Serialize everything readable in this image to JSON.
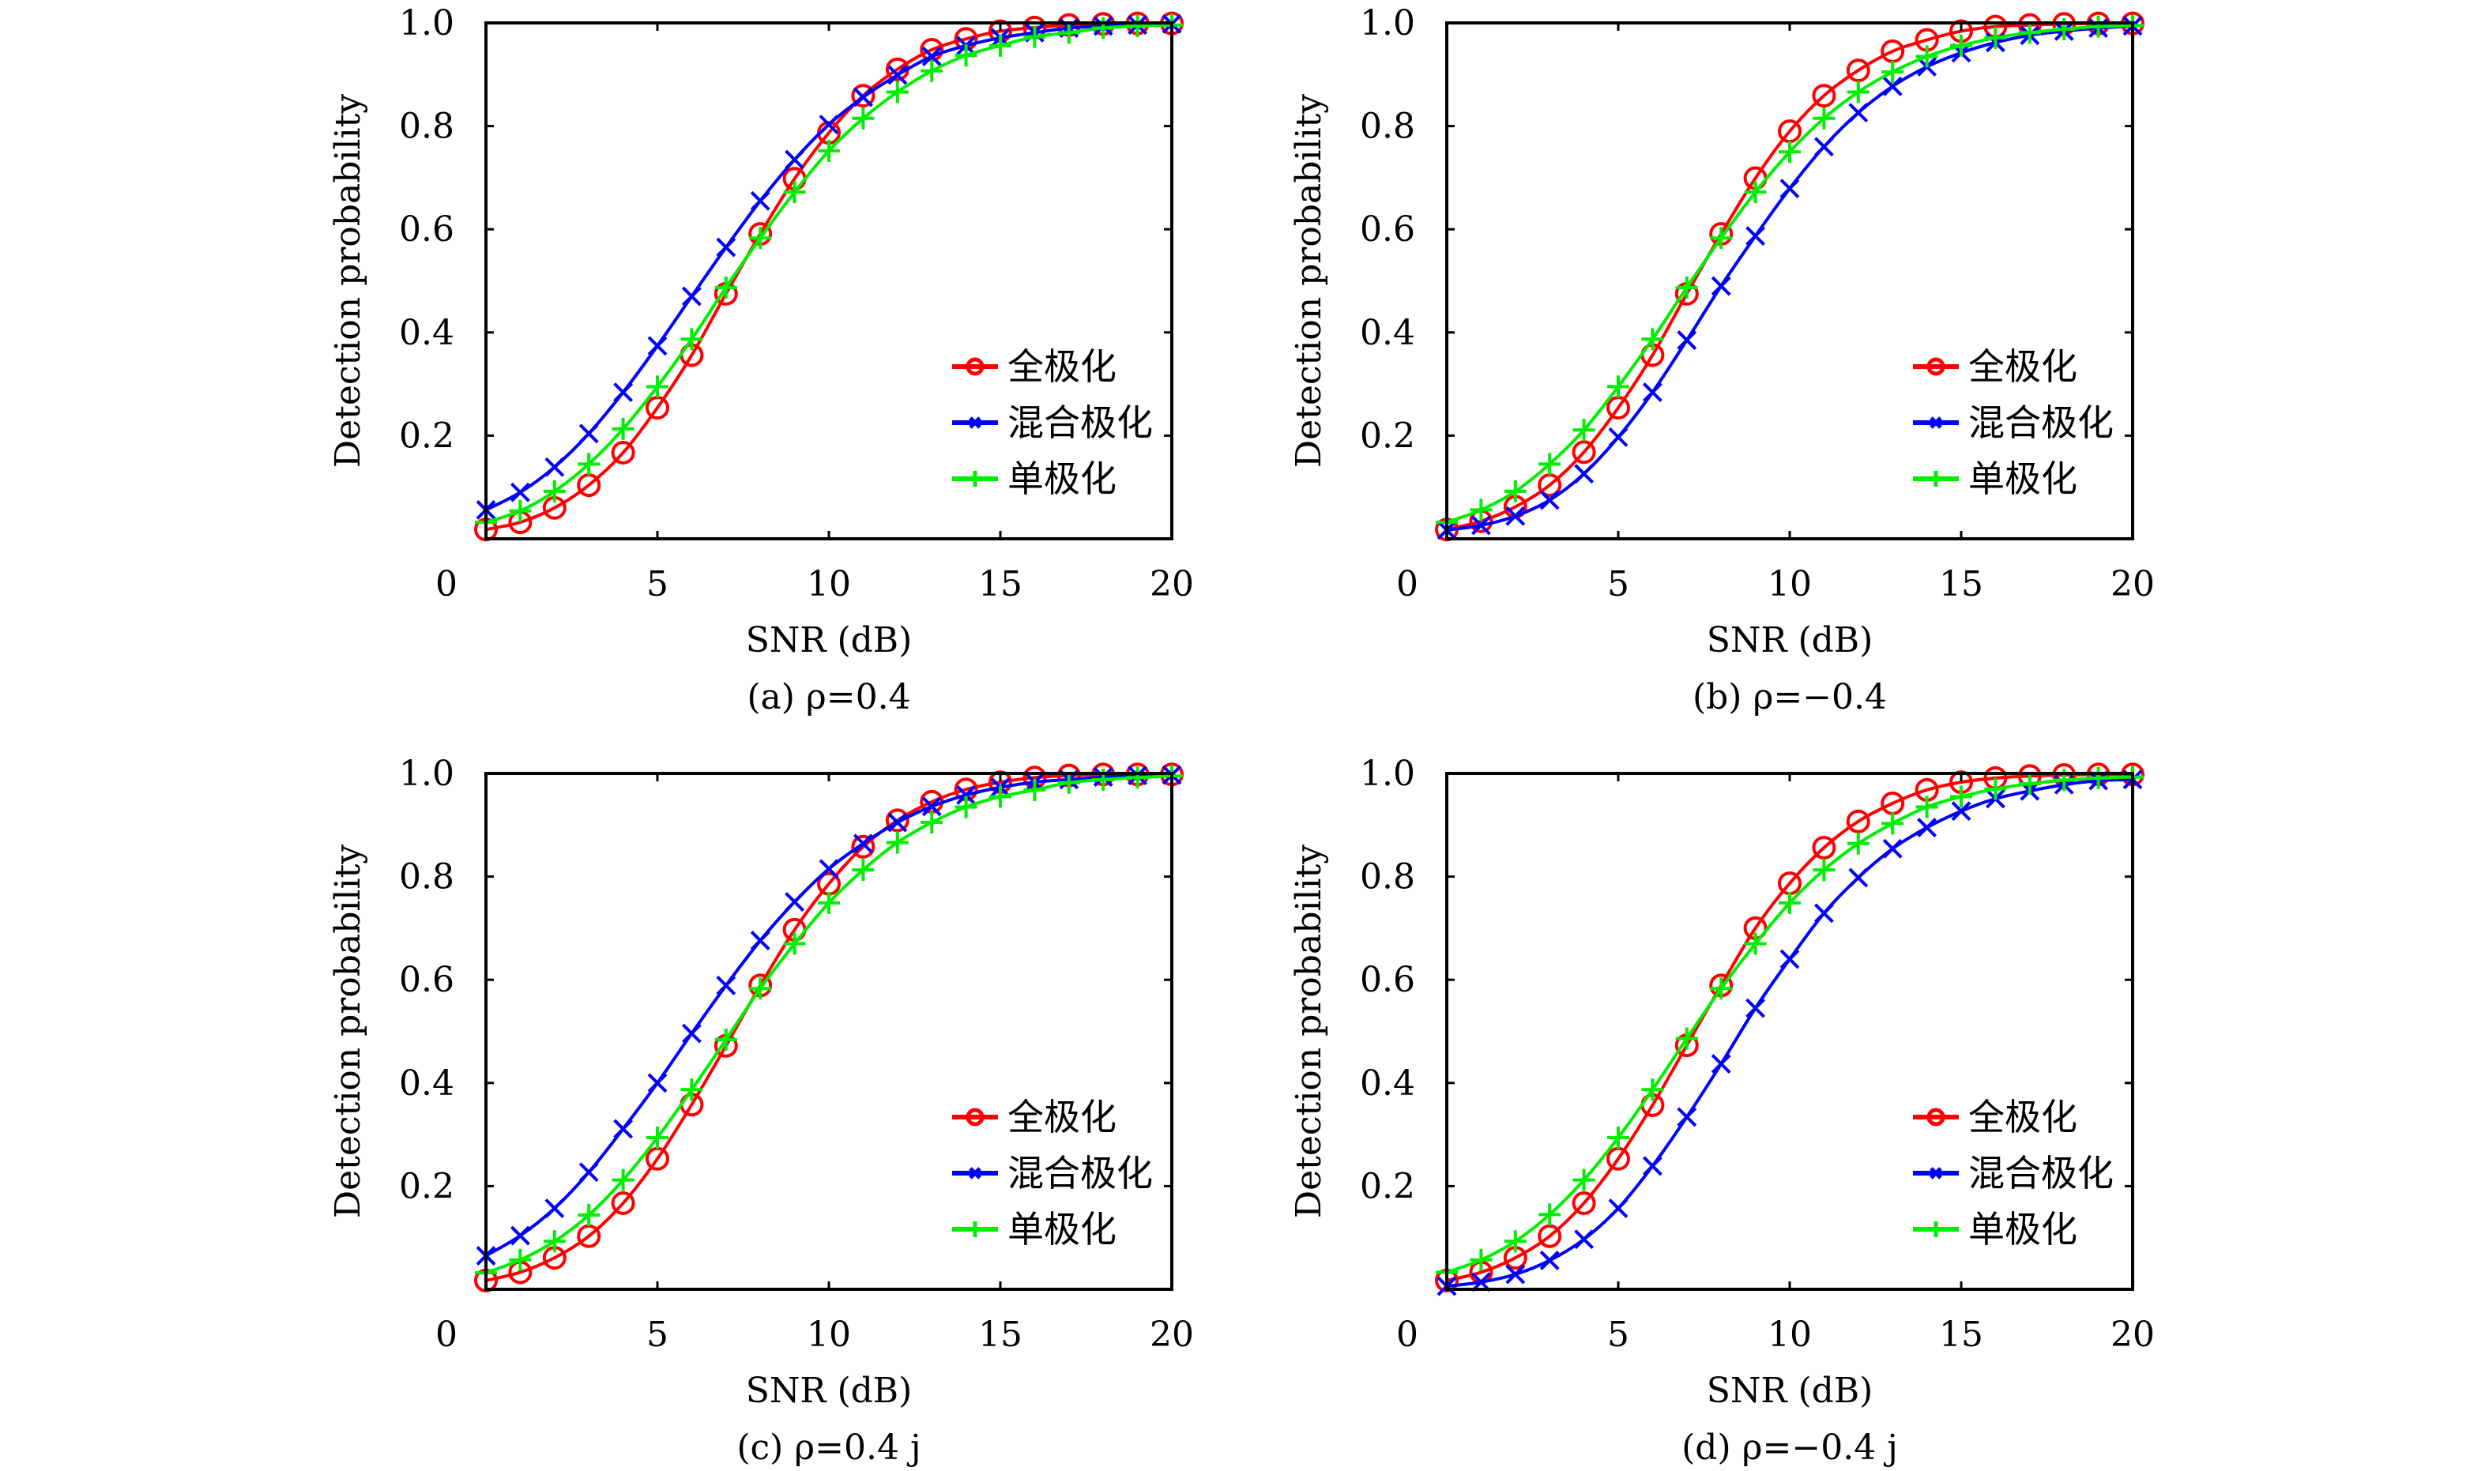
{
  "chart_data": [
    {
      "type": "line",
      "panel": "a",
      "caption": "(a) ρ=0.4",
      "xlabel": "SNR (dB)",
      "ylabel": "Detection probability",
      "xlim": [
        0,
        20
      ],
      "ylim": [
        0,
        1.0
      ],
      "xticks": [
        0,
        5,
        10,
        15,
        20
      ],
      "xtick_labels": [
        "0",
        "5",
        "10",
        "15",
        "20"
      ],
      "yticks": [
        0.2,
        0.4,
        0.6,
        0.8,
        1.0
      ],
      "ytick_labels": [
        "0.2",
        "0.4",
        "0.6",
        "0.8",
        "1.0"
      ],
      "grid": false,
      "legend_position": "center-right",
      "x": [
        0,
        1,
        2,
        3,
        4,
        5,
        6,
        7,
        8,
        9,
        10,
        11,
        12,
        13,
        14,
        15,
        16,
        17,
        18,
        19,
        20
      ],
      "series": [
        {
          "name": "全极化",
          "color": "#ff0000",
          "marker": "circle",
          "values": [
            0.018,
            0.032,
            0.06,
            0.104,
            0.167,
            0.254,
            0.356,
            0.475,
            0.591,
            0.698,
            0.787,
            0.859,
            0.91,
            0.948,
            0.969,
            0.984,
            0.991,
            0.996,
            0.998,
            0.999,
            0.999
          ]
        },
        {
          "name": "混合极化",
          "color": "#0000ff",
          "marker": "x",
          "values": [
            0.056,
            0.09,
            0.139,
            0.204,
            0.284,
            0.374,
            0.47,
            0.565,
            0.655,
            0.735,
            0.803,
            0.856,
            0.899,
            0.935,
            0.956,
            0.971,
            0.981,
            0.99,
            0.994,
            0.996,
            0.998
          ]
        },
        {
          "name": "单极化",
          "color": "#00ee00",
          "marker": "plus",
          "values": [
            0.032,
            0.054,
            0.092,
            0.145,
            0.213,
            0.295,
            0.387,
            0.487,
            0.583,
            0.672,
            0.752,
            0.815,
            0.866,
            0.907,
            0.937,
            0.956,
            0.973,
            0.981,
            0.99,
            0.994,
            0.996
          ]
        }
      ]
    },
    {
      "type": "line",
      "panel": "b",
      "caption": "(b) ρ=−0.4",
      "xlabel": "SNR (dB)",
      "ylabel": "Detection probability",
      "xlim": [
        0,
        20
      ],
      "ylim": [
        0,
        1.0
      ],
      "xticks": [
        0,
        5,
        10,
        15,
        20
      ],
      "xtick_labels": [
        "0",
        "5",
        "10",
        "15",
        "20"
      ],
      "yticks": [
        0.2,
        0.4,
        0.6,
        0.8,
        1.0
      ],
      "ytick_labels": [
        "0.2",
        "0.4",
        "0.6",
        "0.8",
        "1.0"
      ],
      "grid": false,
      "legend_position": "center-right",
      "x": [
        0,
        1,
        2,
        3,
        4,
        5,
        6,
        7,
        8,
        9,
        10,
        11,
        12,
        13,
        14,
        15,
        16,
        17,
        18,
        19,
        20
      ],
      "series": [
        {
          "name": "全极化",
          "color": "#ff0000",
          "marker": "circle",
          "values": [
            0.018,
            0.034,
            0.062,
            0.104,
            0.168,
            0.254,
            0.356,
            0.475,
            0.591,
            0.699,
            0.79,
            0.859,
            0.908,
            0.945,
            0.967,
            0.984,
            0.993,
            0.996,
            0.998,
            0.999,
            0.999
          ]
        },
        {
          "name": "混合极化",
          "color": "#0000ff",
          "marker": "x",
          "values": [
            0.017,
            0.026,
            0.044,
            0.075,
            0.126,
            0.197,
            0.284,
            0.385,
            0.49,
            0.587,
            0.679,
            0.76,
            0.826,
            0.877,
            0.915,
            0.942,
            0.962,
            0.976,
            0.984,
            0.99,
            0.994
          ]
        },
        {
          "name": "单极化",
          "color": "#00ee00",
          "marker": "plus",
          "values": [
            0.032,
            0.056,
            0.092,
            0.145,
            0.211,
            0.295,
            0.387,
            0.487,
            0.583,
            0.672,
            0.75,
            0.815,
            0.866,
            0.905,
            0.935,
            0.956,
            0.971,
            0.981,
            0.988,
            0.993,
            0.995
          ]
        }
      ]
    },
    {
      "type": "line",
      "panel": "c",
      "caption": "(c) ρ=0.4 j",
      "xlabel": "SNR (dB)",
      "ylabel": "Detection probability",
      "xlim": [
        0,
        20
      ],
      "ylim": [
        0,
        1.0
      ],
      "xticks": [
        0,
        5,
        10,
        15,
        20
      ],
      "xtick_labels": [
        "0",
        "5",
        "10",
        "15",
        "20"
      ],
      "yticks": [
        0.2,
        0.4,
        0.6,
        0.8,
        1.0
      ],
      "ytick_labels": [
        "0.2",
        "0.4",
        "0.6",
        "0.8",
        "1.0"
      ],
      "grid": false,
      "legend_position": "center-right",
      "x": [
        0,
        1,
        2,
        3,
        4,
        5,
        6,
        7,
        8,
        9,
        10,
        11,
        12,
        13,
        14,
        15,
        16,
        17,
        18,
        19,
        20
      ],
      "series": [
        {
          "name": "全极化",
          "color": "#ff0000",
          "marker": "circle",
          "values": [
            0.017,
            0.033,
            0.061,
            0.103,
            0.167,
            0.253,
            0.358,
            0.472,
            0.589,
            0.697,
            0.786,
            0.858,
            0.909,
            0.945,
            0.969,
            0.983,
            0.992,
            0.996,
            0.998,
            0.998,
            0.998
          ]
        },
        {
          "name": "混合极化",
          "color": "#0000ff",
          "marker": "x",
          "values": [
            0.065,
            0.104,
            0.157,
            0.227,
            0.311,
            0.4,
            0.496,
            0.589,
            0.676,
            0.751,
            0.815,
            0.864,
            0.905,
            0.936,
            0.958,
            0.973,
            0.983,
            0.988,
            0.993,
            0.996,
            0.997
          ]
        },
        {
          "name": "单极化",
          "color": "#00ee00",
          "marker": "plus",
          "values": [
            0.032,
            0.057,
            0.093,
            0.144,
            0.212,
            0.294,
            0.387,
            0.484,
            0.583,
            0.67,
            0.749,
            0.813,
            0.866,
            0.905,
            0.935,
            0.955,
            0.968,
            0.982,
            0.988,
            0.992,
            0.995
          ]
        }
      ]
    },
    {
      "type": "line",
      "panel": "d",
      "caption": "(d) ρ=−0.4 j",
      "xlabel": "SNR (dB)",
      "ylabel": "Detection probability",
      "xlim": [
        0,
        20
      ],
      "ylim": [
        0,
        1.0
      ],
      "xticks": [
        0,
        5,
        10,
        15,
        20
      ],
      "xtick_labels": [
        "0",
        "5",
        "10",
        "15",
        "20"
      ],
      "yticks": [
        0.2,
        0.4,
        0.6,
        0.8,
        1.0
      ],
      "ytick_labels": [
        "0.2",
        "0.4",
        "0.6",
        "0.8",
        "1.0"
      ],
      "grid": false,
      "legend_position": "center-right",
      "x": [
        0,
        1,
        2,
        3,
        4,
        5,
        6,
        7,
        8,
        9,
        10,
        11,
        12,
        13,
        14,
        15,
        16,
        17,
        18,
        19,
        20
      ],
      "series": [
        {
          "name": "全极化",
          "color": "#ff0000",
          "marker": "circle",
          "values": [
            0.017,
            0.033,
            0.061,
            0.103,
            0.167,
            0.253,
            0.357,
            0.473,
            0.589,
            0.7,
            0.787,
            0.856,
            0.907,
            0.942,
            0.968,
            0.983,
            0.991,
            0.995,
            0.997,
            0.998,
            0.998
          ]
        },
        {
          "name": "混合极化",
          "color": "#0000ff",
          "marker": "x",
          "values": [
            0.006,
            0.014,
            0.029,
            0.056,
            0.097,
            0.157,
            0.239,
            0.334,
            0.437,
            0.545,
            0.64,
            0.729,
            0.798,
            0.854,
            0.895,
            0.927,
            0.951,
            0.966,
            0.978,
            0.986,
            0.988
          ]
        },
        {
          "name": "单极化",
          "color": "#00ee00",
          "marker": "plus",
          "values": [
            0.033,
            0.057,
            0.093,
            0.145,
            0.212,
            0.294,
            0.387,
            0.486,
            0.583,
            0.67,
            0.749,
            0.813,
            0.864,
            0.903,
            0.935,
            0.955,
            0.97,
            0.98,
            0.987,
            0.991,
            0.993
          ]
        }
      ]
    }
  ]
}
